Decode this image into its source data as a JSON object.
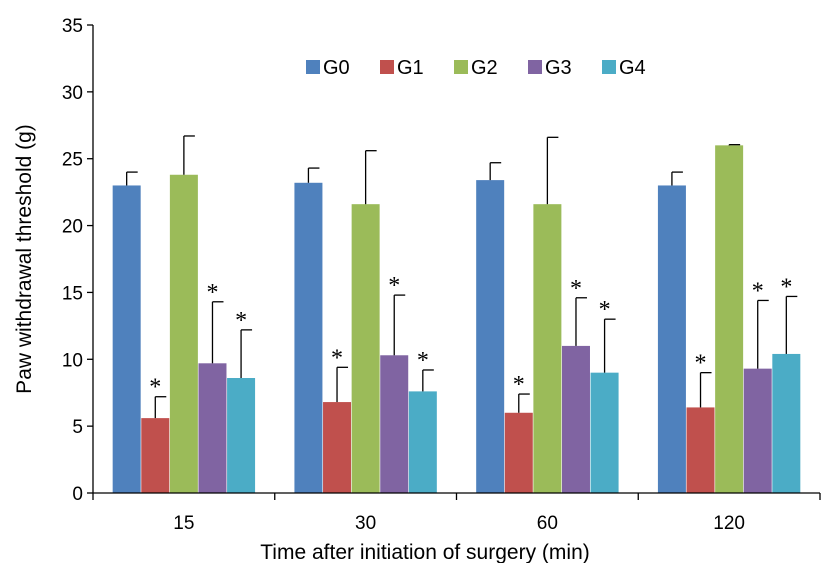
{
  "chart_data": {
    "type": "bar",
    "title": "",
    "xlabel": "Time after initiation of surgery (min)",
    "ylabel": "Paw withdrawal threshold (g)",
    "ylim": [
      0,
      35
    ],
    "yticks": [
      "0",
      "5",
      "10",
      "15",
      "20",
      "25",
      "30",
      "35"
    ],
    "categories": [
      "15",
      "30",
      "60",
      "120"
    ],
    "grid": false,
    "legend": "top",
    "significance_marker": "*",
    "series": [
      {
        "name": "G0",
        "color": "#4F81BD",
        "values": [
          23.0,
          23.2,
          23.4,
          23.0
        ],
        "errors": [
          1.0,
          1.1,
          1.3,
          1.0
        ],
        "significant": [
          false,
          false,
          false,
          false
        ]
      },
      {
        "name": "G1",
        "color": "#C0504D",
        "values": [
          5.6,
          6.8,
          6.0,
          6.4
        ],
        "errors": [
          1.6,
          2.6,
          1.4,
          2.6
        ],
        "significant": [
          true,
          true,
          true,
          true
        ]
      },
      {
        "name": "G2",
        "color": "#9BBB59",
        "values": [
          23.8,
          21.6,
          21.6,
          26.0
        ],
        "errors": [
          2.9,
          4.0,
          5.0,
          0.05
        ],
        "significant": [
          false,
          false,
          false,
          false
        ]
      },
      {
        "name": "G3",
        "color": "#8064A2",
        "values": [
          9.7,
          10.3,
          11.0,
          9.3
        ],
        "errors": [
          4.6,
          4.5,
          3.6,
          5.1
        ],
        "significant": [
          true,
          true,
          true,
          true
        ]
      },
      {
        "name": "G4",
        "color": "#4BACC6",
        "values": [
          8.6,
          7.6,
          9.0,
          10.4
        ],
        "errors": [
          3.6,
          1.6,
          4.0,
          4.3
        ],
        "significant": [
          true,
          true,
          true,
          true
        ]
      }
    ]
  }
}
